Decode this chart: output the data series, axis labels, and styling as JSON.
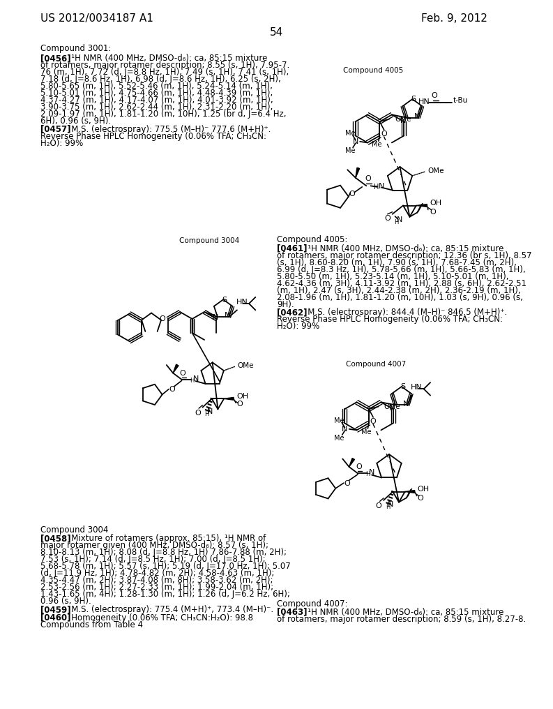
{
  "patent_number": "US 2012/0034187 A1",
  "date": "Feb. 9, 2012",
  "page_number": "54",
  "background_color": "#ffffff",
  "compound3001_label": "Compound 3001:",
  "compound4005_label_small": "Compound 4005",
  "compound3004_label": "Compound 3004",
  "compound4005_section": "Compound 4005:",
  "compound4007_label_small": "Compound 4007",
  "compound4007_section": "Compound 4007:",
  "para456_lines": [
    [
      "[0456]",
      true,
      "   ¹H NMR (400 MHz, DMSO-d₆): ca, 85:15 mixture"
    ],
    [
      "of rotamers, major rotamer description; 8.55 (s, 1H), 7.95-7.",
      false,
      ""
    ],
    [
      "76 (m, 1H), 7.72 (d, J=8.8 Hz, 1H), 7.49 (s, 1H), 7.41 (s, 1H),",
      false,
      ""
    ],
    [
      "7.18 (d, J=8.6 Hz, 1H), 6.98 (d, J=8.6 Hz, 1H), 6.25 (s, 2H),",
      false,
      ""
    ],
    [
      "5.80-5.65 (m, 1H), 5.52-5.46 (m, 1H), 5.24-5.14 (m, 1H),",
      false,
      ""
    ],
    [
      "5.10-5.01 (m, 1H), 4.75-4.66 (m, 1H), 4.48-4.39 (m, 1H),",
      false,
      ""
    ],
    [
      "4.37-4.27 (m, 1H), 4.17-4.07 (m, 1H), 4.01-3.92 (m, 1H),",
      false,
      ""
    ],
    [
      "3.90-3.75 (m, 1H), 2.62-2.44 (m, 1H), 2.31-2.20 (m, 1H),",
      false,
      ""
    ],
    [
      "2.09-1.97 (m, 1H), 1.81-1.20 (m, 10H), 1.25 (br d, J=6.4 Hz,",
      false,
      ""
    ],
    [
      "6H), 0.96 (s, 9H).",
      false,
      ""
    ]
  ],
  "para457_lines": [
    [
      "[0457]",
      true,
      "   M.S. (electrospray): 775.5 (M–H)⁻ 777.6 (M+H)⁺."
    ],
    [
      "Reverse Phase HPLC Homogeneity (0.06% TFA; CH₃CN:",
      false,
      ""
    ],
    [
      "H₂O): 99%",
      false,
      ""
    ]
  ],
  "para458_lines": [
    [
      "[0458]",
      true,
      "   Mixture of rotamers (approx. 85:15), ¹H NMR of"
    ],
    [
      "major rotamer given (400 MHz, DMSO-d₆): 8.57 (s, 1H);",
      false,
      ""
    ],
    [
      "8.10-8.13 (m, 1H); 8.08 (d, J=8.8 Hz, 1H) 7.86-7.88 (m, 2H);",
      false,
      ""
    ],
    [
      "7.53 (s, 1H); 7.14 (d, J=8.5 Hz, 1H); 7.00 (d, J=8.5 1H);",
      false,
      ""
    ],
    [
      "5.68-5.78 (m, 1H); 5.57 (s, 1H); 5.19 (d, J=17.0 Hz, 1H); 5.07",
      false,
      ""
    ],
    [
      "(d, J=11.9 Hz, 1H); 4.78-4.82 (m, 2H); 4.58-4.63 (m, 1H);",
      false,
      ""
    ],
    [
      "4.35-4.47 (m, 2H); 3.87-4.08 (m, 8H); 3.58-3.62 (m, 2H);",
      false,
      ""
    ],
    [
      "2.53-2.56 (m, 1H); 2.27-2.33 (m, 1H); 1.99-2.04 (m, 1H);",
      false,
      ""
    ],
    [
      "1.43-1.65 (m, 4H); 1.28-1.30 (m, 1H); 1.26 (d, J=6.2 Hz, 6H);",
      false,
      ""
    ],
    [
      "0.96 (s, 9H).",
      false,
      ""
    ]
  ],
  "para459_lines": [
    [
      "[0459]",
      true,
      "   M.S. (electrospray): 775.4 (M+H)⁺, 773.4 (M–H)⁻."
    ]
  ],
  "para460_lines": [
    [
      "[0460]",
      true,
      "   Homogeneity (0.06% TFA; CH₃CN:H₂O): 98.8"
    ],
    [
      "Compounds from Table 4",
      false,
      ""
    ]
  ],
  "para461_lines": [
    [
      "[0461]",
      true,
      "   ¹H NMR (400 MHz, DMSO-d₆): ca, 85:15 mixture"
    ],
    [
      "of rotamers, major rotamer description; 12.36 (br s, 1H), 8.57",
      false,
      ""
    ],
    [
      "(s, 1H), 8.60-8.20 (m, 1H), 7.90 (s, 1H), 7.68-7.45 (m, 2H),",
      false,
      ""
    ],
    [
      "6.99 (d, J=8.3 Hz, 1H), 5.78-5.66 (m, 1H), 5.66-5.83 (m, 1H),",
      false,
      ""
    ],
    [
      "5.80-5.50 (m, 1H), 5.23-5.14 (m, 1H), 5.10-5.01 (m, 1H),",
      false,
      ""
    ],
    [
      "4.62-4.36 (m, 3H), 4.11-3.92 (m, 1H), 2.88 (s, 6H), 2.62-2.51",
      false,
      ""
    ],
    [
      "(m, 1H), 2.47 (s, 3H), 2.44-2.38 (m, 2H), 2.36-2.19 (m, 1H),",
      false,
      ""
    ],
    [
      "2.08-1.96 (m, 1H), 1.81-1.20 (m, 10H), 1.03 (s, 9H), 0.96 (s,",
      false,
      ""
    ],
    [
      "9H).",
      false,
      ""
    ]
  ],
  "para462_lines": [
    [
      "[0462]",
      true,
      "   M.S. (electrospray): 844.4 (M–H)⁻ 846.5 (M+H)⁺."
    ],
    [
      "Reverse Phase HPLC Homogeneity (0.06% TFA; CH₃CN:",
      false,
      ""
    ],
    [
      "H₂O): 99%",
      false,
      ""
    ]
  ],
  "para463_lines": [
    [
      "[0463]",
      true,
      "   ¹H NMR (400 MHz, DMSO-d₆): ca, 85:15 mixture"
    ],
    [
      "of rotamers, major rotamer description; 8.59 (s, 1H), 8.27-8.",
      false,
      ""
    ]
  ],
  "font_size_header": 11,
  "font_size_body": 8.5,
  "font_size_small_label": 7.5,
  "font_size_page": 11,
  "lh": 13
}
